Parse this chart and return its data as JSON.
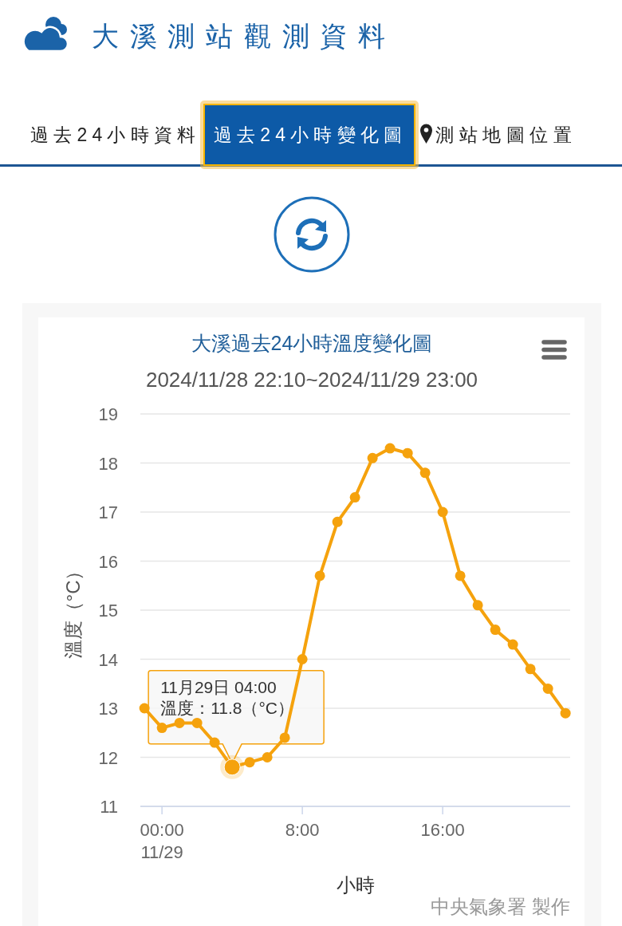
{
  "chart_data": {
    "type": "line",
    "title": "大溪過去24小時溫度變化圖",
    "subtitle": "2024/11/28 22:10~2024/11/29 23:00",
    "xlabel": "小時",
    "ylabel": "溫度（°C）",
    "x": [
      "2024-11-28T23:00",
      "2024-11-29T00:00",
      "2024-11-29T01:00",
      "2024-11-29T02:00",
      "2024-11-29T03:00",
      "2024-11-29T04:00",
      "2024-11-29T05:00",
      "2024-11-29T06:00",
      "2024-11-29T07:00",
      "2024-11-29T08:00",
      "2024-11-29T09:00",
      "2024-11-29T10:00",
      "2024-11-29T11:00",
      "2024-11-29T12:00",
      "2024-11-29T13:00",
      "2024-11-29T14:00",
      "2024-11-29T15:00",
      "2024-11-29T16:00",
      "2024-11-29T17:00",
      "2024-11-29T18:00",
      "2024-11-29T19:00",
      "2024-11-29T20:00",
      "2024-11-29T21:00",
      "2024-11-29T22:00",
      "2024-11-29T23:00"
    ],
    "series": [
      {
        "color": "#f5a20d",
        "values": [
          13.0,
          12.6,
          12.7,
          12.7,
          12.3,
          11.8,
          11.9,
          12.0,
          12.4,
          14.0,
          15.7,
          16.8,
          17.3,
          18.1,
          18.3,
          18.2,
          17.8,
          17.0,
          15.7,
          15.1,
          14.6,
          14.3,
          13.8,
          13.4,
          12.9
        ]
      }
    ],
    "xlim": [
      "2024-11-28T22:46",
      "2024-11-29T23:16"
    ],
    "xticks": [
      {
        "value": "2024-11-29T00:00",
        "label": "00:00\n11/29"
      },
      {
        "value": "2024-11-29T08:00",
        "label": "8:00"
      },
      {
        "value": "2024-11-29T16:00",
        "label": "16:00"
      }
    ],
    "ylim": [
      11,
      19
    ],
    "yticks": [
      11,
      12,
      13,
      14,
      15,
      16,
      17,
      18,
      19
    ],
    "grid": "y",
    "marker": "circle",
    "annotations": [
      "大溪測站觀測資料",
      "過去24小時資料",
      "過去24小時變化圖",
      "測站地圖位置",
      {
        "text": "11月29日 04:00\n溫度：11.8（°C）",
        "x": "2024-11-29T04:00",
        "y": 11.8
      },
      "中央氣象署 製作"
    ]
  }
}
